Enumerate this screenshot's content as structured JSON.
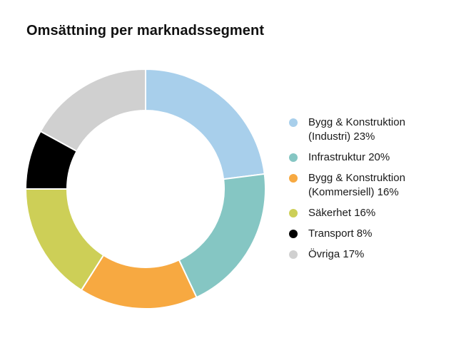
{
  "chart_data": {
    "type": "pie",
    "donut": true,
    "title": "Omsättning per marknadssegment",
    "slices": [
      {
        "label_lines": [
          "Bygg & Konstruktion",
          "(Industri) 23%"
        ],
        "value": 23,
        "color": "#a8cfeb"
      },
      {
        "label_lines": [
          "Infrastruktur 20%"
        ],
        "value": 20,
        "color": "#85c6c3"
      },
      {
        "label_lines": [
          "Bygg & Konstruktion",
          "(Kommersiell) 16%"
        ],
        "value": 16,
        "color": "#f7a941"
      },
      {
        "label_lines": [
          "Säkerhet 16%"
        ],
        "value": 16,
        "color": "#cdcf57"
      },
      {
        "label_lines": [
          "Transport 8%"
        ],
        "value": 8,
        "color": "#000000"
      },
      {
        "label_lines": [
          "Övriga 17%"
        ],
        "value": 17,
        "color": "#d0d0d0"
      }
    ],
    "legend_position": "right"
  }
}
